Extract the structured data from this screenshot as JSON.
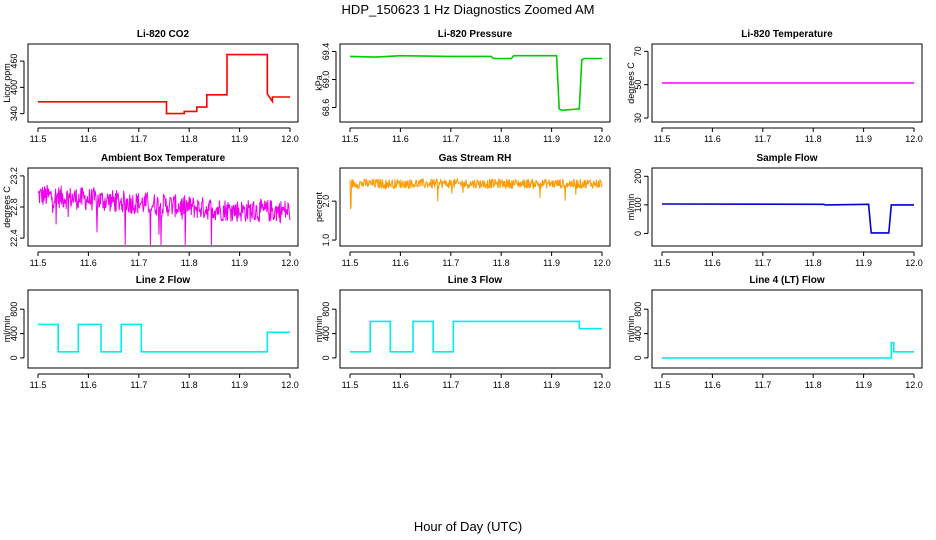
{
  "figure": {
    "title": "HDP_150623  1 Hz Diagnostics Zoomed AM",
    "xlabel": "Hour of Day (UTC)"
  },
  "chart_data": [
    {
      "type": "line",
      "title": "Li-820 CO2",
      "ylabel": "Licor ppm",
      "color": "#ff0000",
      "xlim": [
        11.5,
        12.0
      ],
      "ylim": [
        330,
        490
      ],
      "xticks": [
        "11.5",
        "11.6",
        "11.7",
        "11.8",
        "11.9",
        "12.0"
      ],
      "yticks": [
        "340",
        "400",
        "460"
      ],
      "x": [
        11.5,
        11.755,
        11.755,
        11.79,
        11.79,
        11.815,
        11.815,
        11.835,
        11.835,
        11.875,
        11.875,
        11.955,
        11.955,
        11.965,
        11.965,
        12.0
      ],
      "y": [
        367,
        367,
        340,
        340,
        345,
        345,
        355,
        355,
        383,
        383,
        475,
        475,
        385,
        368,
        378,
        378
      ]
    },
    {
      "type": "line",
      "title": "Li-820 Pressure",
      "ylabel": "kPa",
      "color": "#00cc00",
      "xlim": [
        11.5,
        12.0
      ],
      "ylim": [
        68.45,
        69.45
      ],
      "xticks": [
        "11.5",
        "11.6",
        "11.7",
        "11.8",
        "11.9",
        "12.0"
      ],
      "yticks": [
        "68.6",
        "69.0",
        "69.4"
      ],
      "x": [
        11.5,
        11.55,
        11.6,
        11.7,
        11.78,
        11.785,
        11.82,
        11.825,
        11.91,
        11.915,
        11.92,
        11.955,
        11.96,
        11.965,
        12.0
      ],
      "y": [
        69.33,
        69.32,
        69.34,
        69.33,
        69.33,
        69.3,
        69.3,
        69.34,
        69.34,
        68.58,
        68.56,
        68.58,
        69.28,
        69.3,
        69.3
      ]
    },
    {
      "type": "line",
      "title": "Li-820 Temperature",
      "ylabel": "degrees C",
      "color": "#ff00ff",
      "xlim": [
        11.5,
        12.0
      ],
      "ylim": [
        30,
        72
      ],
      "xticks": [
        "11.5",
        "11.6",
        "11.7",
        "11.8",
        "11.9",
        "12.0"
      ],
      "yticks": [
        "30",
        "50",
        "70"
      ],
      "x": [
        11.5,
        12.0
      ],
      "y": [
        51,
        51
      ]
    },
    {
      "type": "line",
      "title": "Ambient Box Temperature",
      "ylabel": "degrees C",
      "color": "#ee00ee",
      "xlim": [
        11.5,
        12.0
      ],
      "ylim": [
        22.35,
        23.25
      ],
      "xticks": [
        "11.5",
        "11.6",
        "11.7",
        "11.8",
        "11.9",
        "12.0"
      ],
      "yticks": [
        "22.4",
        "22.8",
        "23.2"
      ],
      "x": [
        11.5,
        11.6,
        11.7,
        11.8,
        11.9,
        12.0
      ],
      "y": [
        22.95,
        22.9,
        22.85,
        22.8,
        22.75,
        22.75
      ],
      "noise": 0.3
    },
    {
      "type": "line",
      "title": "Gas Stream RH",
      "ylabel": "percent",
      "color": "#ff9900",
      "xlim": [
        11.5,
        12.0
      ],
      "ylim": [
        0.95,
        2.75
      ],
      "xticks": [
        "11.5",
        "11.6",
        "11.7",
        "11.8",
        "11.9",
        "12.0"
      ],
      "yticks": [
        "1.0",
        "2.0"
      ],
      "x": [
        11.5,
        12.0
      ],
      "y": [
        2.45,
        2.45
      ],
      "noise": 0.25
    },
    {
      "type": "line",
      "title": "Sample Flow",
      "ylabel": "ml/min",
      "color": "#0000cc",
      "xlim": [
        11.5,
        12.0
      ],
      "ylim": [
        -30,
        215
      ],
      "xticks": [
        "11.5",
        "11.6",
        "11.7",
        "11.8",
        "11.9",
        "12.0"
      ],
      "yticks": [
        "0",
        "100",
        "200"
      ],
      "x": [
        11.5,
        11.82,
        11.825,
        11.91,
        11.915,
        11.95,
        11.955,
        12.0
      ],
      "y": [
        103,
        102,
        100,
        102,
        2,
        2,
        100,
        100
      ]
    },
    {
      "type": "line",
      "title": "Line 2 Flow",
      "ylabel": "ml/min",
      "color": "#00eeee",
      "xlim": [
        11.5,
        12.0
      ],
      "ylim": [
        -100,
        1050
      ],
      "xticks": [
        "11.5",
        "11.6",
        "11.7",
        "11.8",
        "11.9",
        "12.0"
      ],
      "yticks": [
        "0",
        "400",
        "800"
      ],
      "x": [
        11.5,
        11.54,
        11.54,
        11.58,
        11.58,
        11.625,
        11.625,
        11.665,
        11.665,
        11.705,
        11.705,
        11.955,
        11.955,
        12.0
      ],
      "y": [
        550,
        550,
        100,
        100,
        550,
        550,
        100,
        100,
        550,
        550,
        100,
        100,
        420,
        420
      ]
    },
    {
      "type": "line",
      "title": "Line 3 Flow",
      "ylabel": "ml/min",
      "color": "#00eeee",
      "xlim": [
        11.5,
        12.0
      ],
      "ylim": [
        -100,
        1050
      ],
      "xticks": [
        "11.5",
        "11.6",
        "11.7",
        "11.8",
        "11.9",
        "12.0"
      ],
      "yticks": [
        "0",
        "400",
        "800"
      ],
      "x": [
        11.5,
        11.54,
        11.54,
        11.58,
        11.58,
        11.625,
        11.625,
        11.665,
        11.665,
        11.705,
        11.705,
        11.955,
        11.955,
        12.0
      ],
      "y": [
        100,
        100,
        600,
        600,
        100,
        100,
        600,
        600,
        100,
        100,
        600,
        600,
        480,
        480
      ]
    },
    {
      "type": "line",
      "title": "Line 4 (LT) Flow",
      "ylabel": "ml/min",
      "color": "#00eeee",
      "xlim": [
        11.5,
        12.0
      ],
      "ylim": [
        -100,
        1050
      ],
      "xticks": [
        "11.5",
        "11.6",
        "11.7",
        "11.8",
        "11.9",
        "12.0"
      ],
      "yticks": [
        "0",
        "400",
        "800"
      ],
      "x": [
        11.5,
        11.955,
        11.955,
        11.96,
        11.96,
        12.0
      ],
      "y": [
        0,
        0,
        250,
        250,
        100,
        100
      ]
    }
  ]
}
